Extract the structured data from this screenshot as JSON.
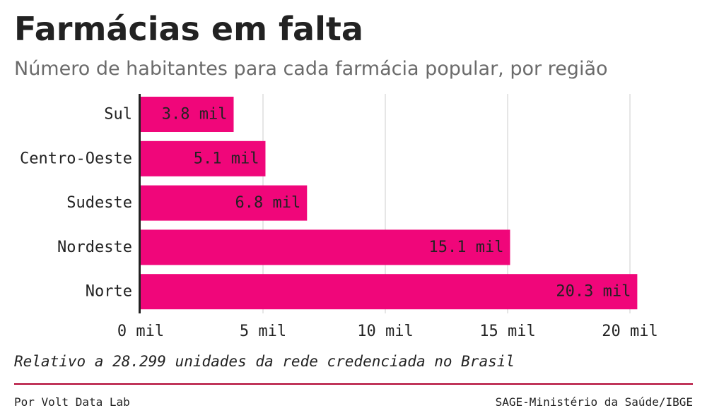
{
  "header": {
    "title": "Farmácias em falta",
    "subtitle": "Número de habitantes para cada farmácia popular, por região"
  },
  "footer": {
    "note": "Relativo a 28.299 unidades da rede credenciada no Brasil",
    "credit": "Por Volt Data Lab",
    "source": "SAGE-Ministério da Saúde/IBGE"
  },
  "colors": {
    "bar": "#f0067a",
    "grid": "#dddddd",
    "axis": "#222222",
    "rule": "#b0002f"
  },
  "chart_data": {
    "type": "bar",
    "orientation": "horizontal",
    "title": "Farmácias em falta",
    "subtitle": "Número de habitantes para cada farmácia popular, por região",
    "categories": [
      "Sul",
      "Centro-Oeste",
      "Sudeste",
      "Nordeste",
      "Norte"
    ],
    "values": [
      3.8,
      5.1,
      6.8,
      15.1,
      20.3
    ],
    "data_labels": [
      "3.8 mil",
      "5.1 mil",
      "6.8 mil",
      "15.1 mil",
      "20.3 mil"
    ],
    "xlim": [
      0,
      20.3
    ],
    "xticks": [
      0,
      5,
      10,
      15,
      20
    ],
    "xtick_labels": [
      "0 mil",
      "5 mil",
      "10 mil",
      "15 mil",
      "20 mil"
    ],
    "grid": true,
    "legend": "none"
  }
}
